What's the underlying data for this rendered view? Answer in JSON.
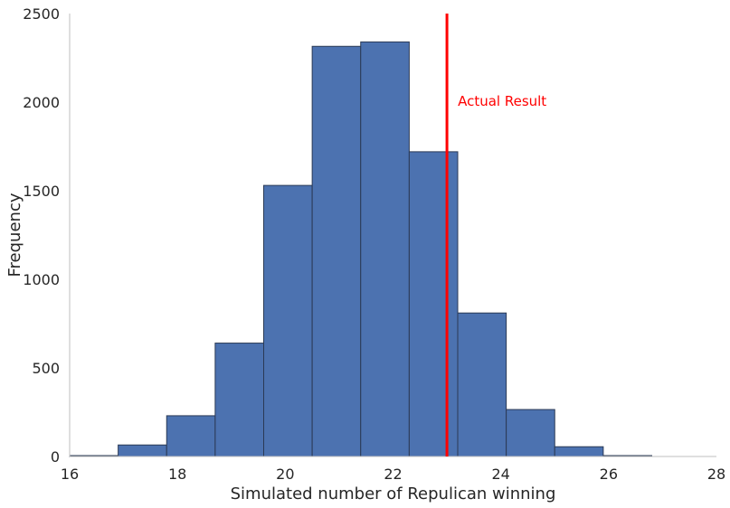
{
  "chart_data": {
    "type": "bar",
    "subtype": "histogram",
    "title": "",
    "xlabel": "Simulated number of Repulican winning",
    "ylabel": "Frequency",
    "xlim": [
      16,
      28
    ],
    "ylim": [
      0,
      2500
    ],
    "xticks": [
      16,
      18,
      20,
      22,
      24,
      26,
      28
    ],
    "yticks": [
      0,
      500,
      1000,
      1500,
      2000,
      2500
    ],
    "bin_edges": [
      16.0,
      16.9,
      17.8,
      18.7,
      19.6,
      20.5,
      21.4,
      22.3,
      23.2,
      24.1,
      25.0,
      25.9,
      26.8
    ],
    "values": [
      5,
      65,
      230,
      640,
      1530,
      2315,
      2340,
      1720,
      810,
      265,
      55,
      5
    ],
    "grid": false,
    "colors": {
      "bar_fill": "#4c72b0",
      "bar_edge": "#2b3a55",
      "annotation": "#ff0000",
      "axis": "#bfbfbf"
    },
    "annotations": [
      {
        "type": "vline",
        "x": 23,
        "label": "Actual Result",
        "label_y": 2000
      }
    ]
  }
}
